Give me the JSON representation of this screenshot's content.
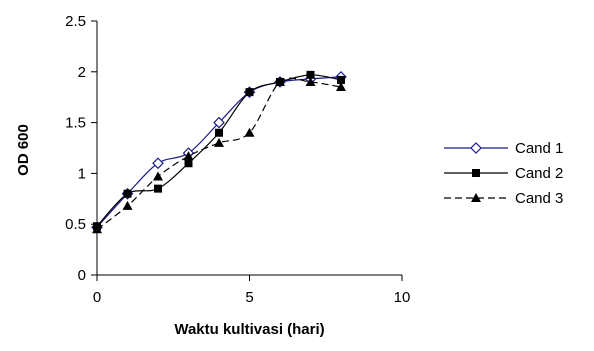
{
  "chart_data": {
    "type": "line",
    "title": "",
    "xlabel": "Waktu kultivasi (hari)",
    "ylabel": "OD 600",
    "xlim": [
      0,
      10
    ],
    "ylim": [
      0,
      2.5
    ],
    "x_ticks": [
      0,
      5,
      10
    ],
    "y_ticks": [
      0,
      0.5,
      1,
      1.5,
      2,
      2.5
    ],
    "x_tick_labels": [
      "0",
      "5",
      "10"
    ],
    "y_tick_labels": [
      "0",
      "0.5",
      "1",
      "1.5",
      "2",
      "2.5"
    ],
    "grid": false,
    "legend_position": "right",
    "series": [
      {
        "name": "Cand 1",
        "marker": "diamond-open",
        "line_style": "solid",
        "color": "#1a1a8c",
        "x": [
          0,
          1,
          2,
          3,
          4,
          5,
          6,
          7,
          8
        ],
        "y": [
          0.47,
          0.8,
          1.1,
          1.2,
          1.5,
          1.8,
          1.9,
          1.93,
          1.95
        ]
      },
      {
        "name": "Cand 2",
        "marker": "square",
        "line_style": "solid",
        "color": "#000000",
        "x": [
          0,
          1,
          2,
          3,
          4,
          5,
          6,
          7,
          8
        ],
        "y": [
          0.48,
          0.8,
          0.85,
          1.1,
          1.4,
          1.8,
          1.9,
          1.97,
          1.92
        ]
      },
      {
        "name": "Cand 3",
        "marker": "triangle",
        "line_style": "dashed",
        "color": "#000000",
        "x": [
          0,
          1,
          2,
          3,
          4,
          5,
          6,
          7,
          8
        ],
        "y": [
          0.45,
          0.68,
          0.97,
          1.17,
          1.3,
          1.4,
          1.9,
          1.9,
          1.85
        ]
      }
    ]
  }
}
